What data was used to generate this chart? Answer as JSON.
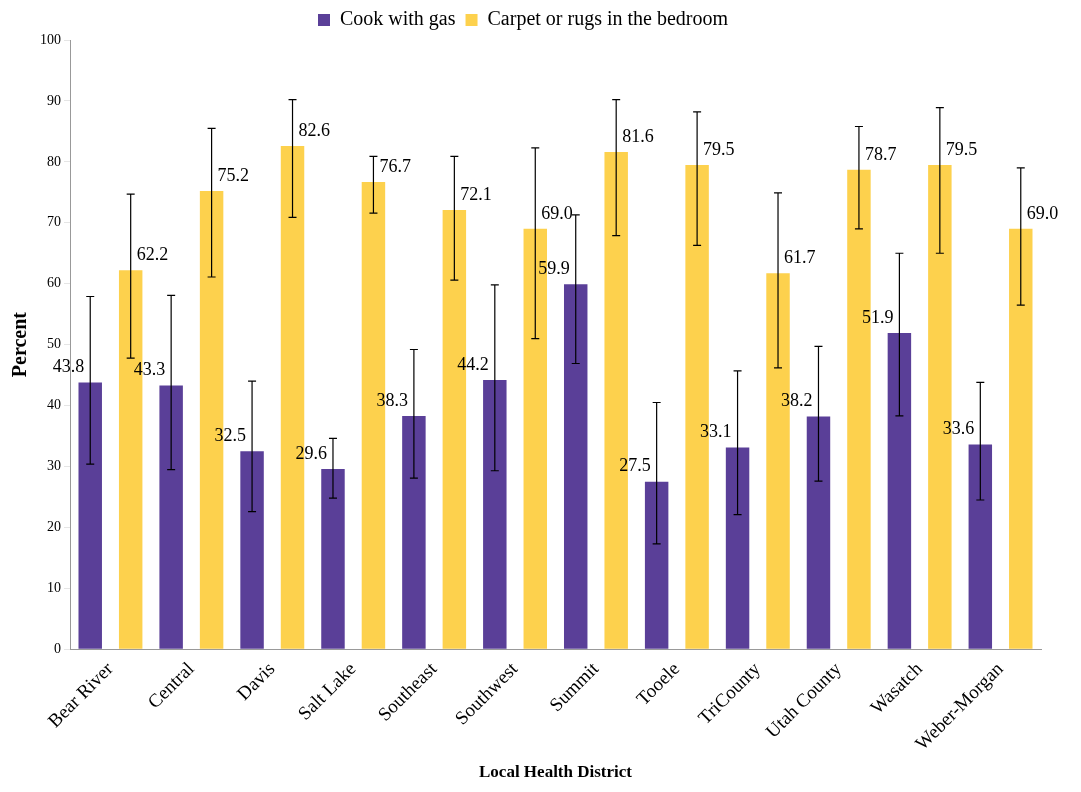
{
  "chart_data": {
    "type": "bar",
    "xlabel": "Local Health District",
    "ylabel": "Percent",
    "categories": [
      "Bear River",
      "Central",
      "Davis",
      "Salt Lake",
      "Southeast",
      "Southwest",
      "Summit",
      "Tooele",
      "TriCounty",
      "Utah County",
      "Wasatch",
      "Weber-Morgan"
    ],
    "series": [
      {
        "name": "Cook with gas",
        "color": "#5a3f98",
        "values": [
          43.8,
          43.3,
          32.5,
          29.6,
          38.3,
          44.2,
          59.9,
          27.5,
          33.1,
          38.2,
          51.9,
          33.6
        ],
        "value_labels": [
          "43.8",
          "43.3",
          "32.5",
          "29.6",
          "38.3",
          "44.2",
          "59.9",
          "27.5",
          "33.1",
          "38.2",
          "51.9",
          "33.6"
        ],
        "errors": [
          [
            30.4,
            57.9
          ],
          [
            29.5,
            58.1
          ],
          [
            22.6,
            44.0
          ],
          [
            24.8,
            34.6
          ],
          [
            28.1,
            49.2
          ],
          [
            29.3,
            59.8
          ],
          [
            46.9,
            71.3
          ],
          [
            17.3,
            40.5
          ],
          [
            22.1,
            45.7
          ],
          [
            27.6,
            49.7
          ],
          [
            38.3,
            65.0
          ],
          [
            24.5,
            43.8
          ]
        ]
      },
      {
        "name": "Carpet or rugs in the bedroom",
        "color": "#fdd14d",
        "values": [
          62.2,
          75.2,
          82.6,
          76.7,
          72.1,
          69.0,
          81.6,
          79.5,
          61.7,
          78.7,
          79.5,
          69.0
        ],
        "value_labels": [
          "62.2",
          "75.2",
          "82.6",
          "76.7",
          "72.1",
          "69.0",
          "81.6",
          "79.5",
          "61.7",
          "78.7",
          "79.5",
          "69.0"
        ],
        "errors": [
          [
            47.8,
            74.7
          ],
          [
            61.1,
            85.5
          ],
          [
            70.9,
            90.2
          ],
          [
            71.6,
            80.9
          ],
          [
            60.6,
            80.9
          ],
          [
            51.0,
            82.3
          ],
          [
            67.9,
            90.2
          ],
          [
            66.3,
            88.2
          ],
          [
            46.2,
            74.9
          ],
          [
            69.0,
            85.8
          ],
          [
            65.0,
            88.9
          ],
          [
            56.5,
            79.0
          ]
        ]
      }
    ],
    "ylim": [
      0,
      100
    ],
    "yticks": [
      0,
      10,
      20,
      30,
      40,
      50,
      60,
      70,
      80,
      90,
      100
    ],
    "grid": false,
    "legend": "top"
  }
}
